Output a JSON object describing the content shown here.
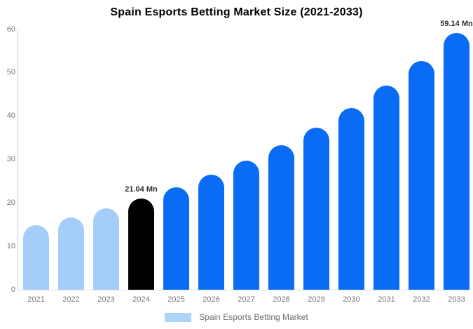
{
  "title": "Spain Esports Betting Market Size (2021-2033)",
  "legend": {
    "label": "Spain Esports Betting Market",
    "swatch_color": "#aed3fa"
  },
  "colors": {
    "historical": "#a5cdfa",
    "base": "#000000",
    "forecast": "#0a6cf5",
    "axis_text": "#757575",
    "data_label": "#2d2d2d"
  },
  "chart_data": {
    "type": "bar",
    "title": "Spain Esports Betting Market Size (2021-2033)",
    "unit": "Mn",
    "categories": [
      "2021",
      "2022",
      "2023",
      "2024",
      "2025",
      "2026",
      "2027",
      "2028",
      "2029",
      "2030",
      "2031",
      "2032",
      "2033"
    ],
    "values": [
      14.9,
      16.7,
      18.8,
      21.04,
      23.6,
      26.5,
      29.7,
      33.3,
      37.4,
      41.9,
      47.0,
      52.7,
      59.14
    ],
    "color_roles": [
      "historical",
      "historical",
      "historical",
      "base",
      "forecast",
      "forecast",
      "forecast",
      "forecast",
      "forecast",
      "forecast",
      "forecast",
      "forecast",
      "forecast"
    ],
    "annotations": [
      {
        "category": "2024",
        "text": "21.04 Mn"
      },
      {
        "category": "2033",
        "text": "59.14 Mn"
      }
    ],
    "ylim": [
      0,
      60
    ],
    "yticks": [
      0,
      10,
      20,
      30,
      40,
      50,
      60
    ],
    "grid": false,
    "legend_position": "bottom",
    "legend_entries": [
      "Spain Esports Betting Market"
    ]
  }
}
